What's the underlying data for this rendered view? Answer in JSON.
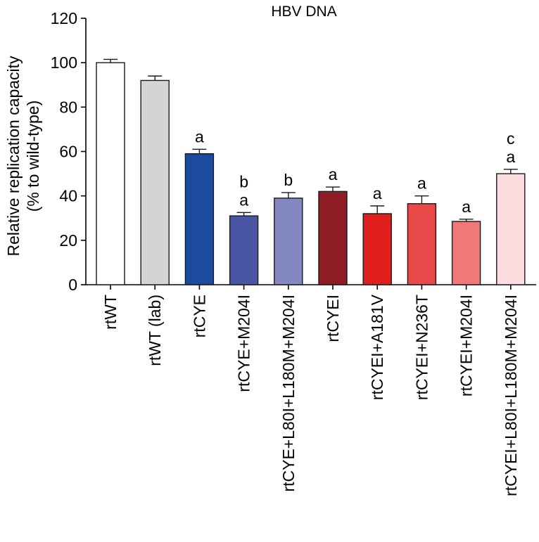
{
  "chart_data": {
    "type": "bar",
    "title": "HBV DNA",
    "ylabel_line1": "Relative replication capacity",
    "ylabel_line2": "(% to wild-type)",
    "xlabel": "",
    "ylim": [
      0,
      120
    ],
    "yticks": [
      "0",
      "20",
      "40",
      "60",
      "80",
      "100",
      "120"
    ],
    "categories": [
      "rtWT",
      "rtWT (lab)",
      "rtCYE",
      "rtCYE+M204I",
      "rtCYE+L80I+L180M+M204I",
      "rtCYEI",
      "rtCYEI+A181V",
      "rtCYEI+N236T",
      "rtCYEI+M204I",
      "rtCYEI+L80I+L180M+M204I"
    ],
    "values": [
      100,
      92,
      59,
      31,
      39,
      42,
      32,
      36.5,
      28.5,
      50
    ],
    "errors": [
      1.5,
      2,
      2,
      1.5,
      2.5,
      2,
      3.5,
      3.5,
      1,
      2
    ],
    "colors": [
      "#ffffff",
      "#d4d4d4",
      "#1b4a9e",
      "#4a55a4",
      "#8488c2",
      "#8e1c24",
      "#e01e1e",
      "#e84848",
      "#f07878",
      "#fbdde0"
    ],
    "annotations": [
      [],
      [],
      [
        "a"
      ],
      [
        "a",
        "b"
      ],
      [
        "b"
      ],
      [
        "a"
      ],
      [
        "a"
      ],
      [
        "a"
      ],
      [
        "a"
      ],
      [
        "a",
        "c"
      ]
    ]
  }
}
